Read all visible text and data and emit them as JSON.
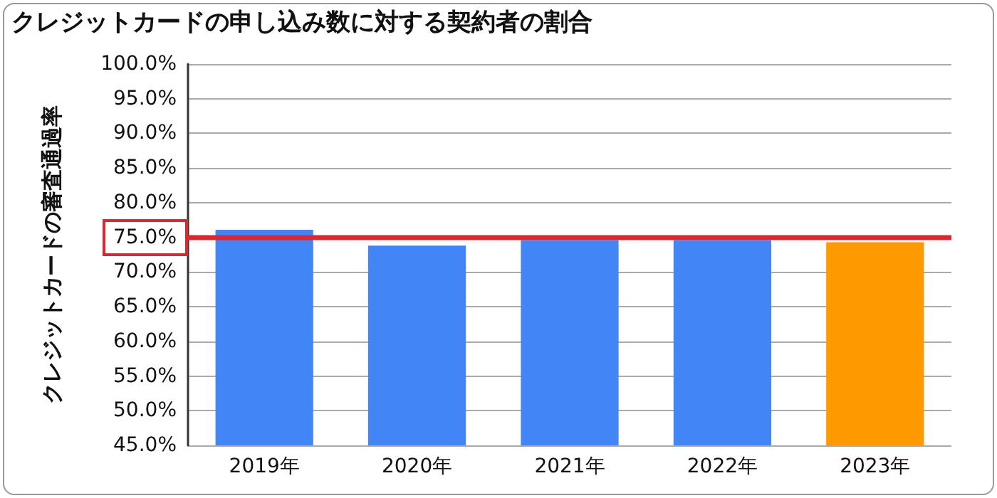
{
  "chart_data": {
    "type": "bar",
    "title": "クレジットカードの申し込み数に対する契約者の割合",
    "ylabel": "クレジットカードの審査通過率",
    "categories": [
      "2019年",
      "2020年",
      "2021年",
      "2022年",
      "2023年"
    ],
    "values": [
      76.1,
      73.8,
      74.6,
      74.6,
      74.3
    ],
    "colors": [
      "#4285f4",
      "#4285f4",
      "#4285f4",
      "#4285f4",
      "#ff9900"
    ],
    "ylim": [
      45,
      100
    ],
    "yticks": [
      {
        "value": 45,
        "label": "45.0%"
      },
      {
        "value": 50,
        "label": "50.0%"
      },
      {
        "value": 55,
        "label": "55.0%"
      },
      {
        "value": 60,
        "label": "60.0%"
      },
      {
        "value": 65,
        "label": "65.0%"
      },
      {
        "value": 70,
        "label": "70.0%"
      },
      {
        "value": 75,
        "label": "75.0%"
      },
      {
        "value": 80,
        "label": "80.0%"
      },
      {
        "value": 85,
        "label": "85.0%"
      },
      {
        "value": 90,
        "label": "90.0%"
      },
      {
        "value": 95,
        "label": "95.0%"
      },
      {
        "value": 100,
        "label": "100.0%"
      }
    ],
    "ref_lines": [
      {
        "axis": "y",
        "value": 75,
        "label": null,
        "color": "#e0252f"
      }
    ],
    "grid": "y"
  }
}
